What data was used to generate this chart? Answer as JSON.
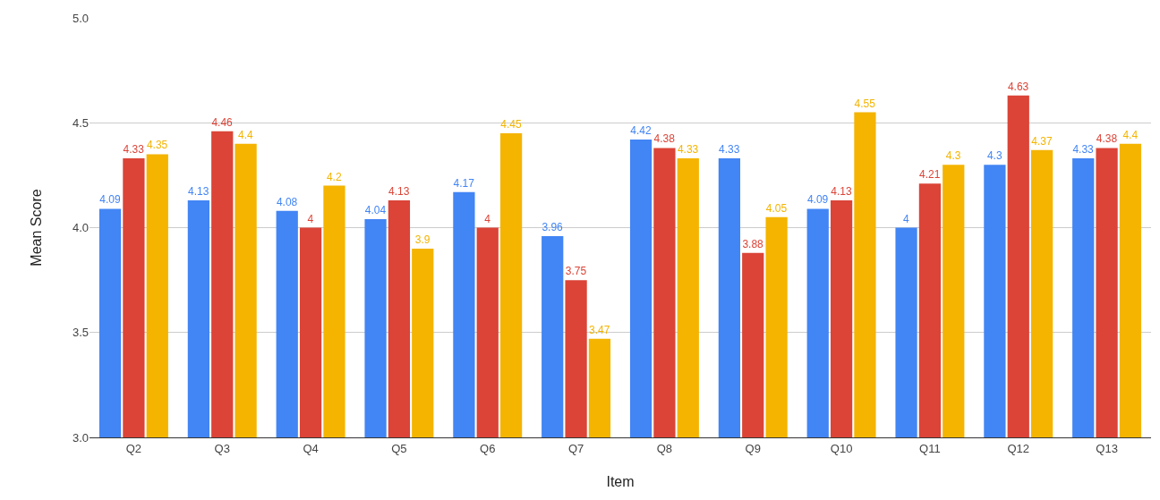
{
  "chart_data": {
    "type": "bar",
    "xlabel": "Item",
    "ylabel": "Mean Score",
    "categories": [
      "Q2",
      "Q3",
      "Q4",
      "Q5",
      "Q6",
      "Q7",
      "Q8",
      "Q9",
      "Q10",
      "Q11",
      "Q12",
      "Q13"
    ],
    "series": [
      {
        "color": "#4285f4",
        "values": [
          4.09,
          4.13,
          4.08,
          4.04,
          4.17,
          3.96,
          4.42,
          4.33,
          4.09,
          4,
          4.3,
          4.33
        ]
      },
      {
        "color": "#db4437",
        "values": [
          4.33,
          4.46,
          4,
          4.13,
          4,
          3.75,
          4.38,
          3.88,
          4.13,
          4.21,
          4.63,
          4.38
        ]
      },
      {
        "color": "#f4b400",
        "values": [
          4.35,
          4.4,
          4.2,
          3.9,
          4.45,
          3.47,
          4.33,
          4.05,
          4.55,
          4.3,
          4.37,
          4.4
        ]
      }
    ],
    "ylim": [
      3,
      5
    ],
    "yticks": [
      {
        "value": 3,
        "label": "3.0"
      },
      {
        "value": 3.5,
        "label": "3.5"
      },
      {
        "value": 4,
        "label": "4.0"
      },
      {
        "value": 4.5,
        "label": "4.5"
      },
      {
        "value": 5,
        "label": "5.0"
      }
    ],
    "grid": "y",
    "data_labels": true
  }
}
